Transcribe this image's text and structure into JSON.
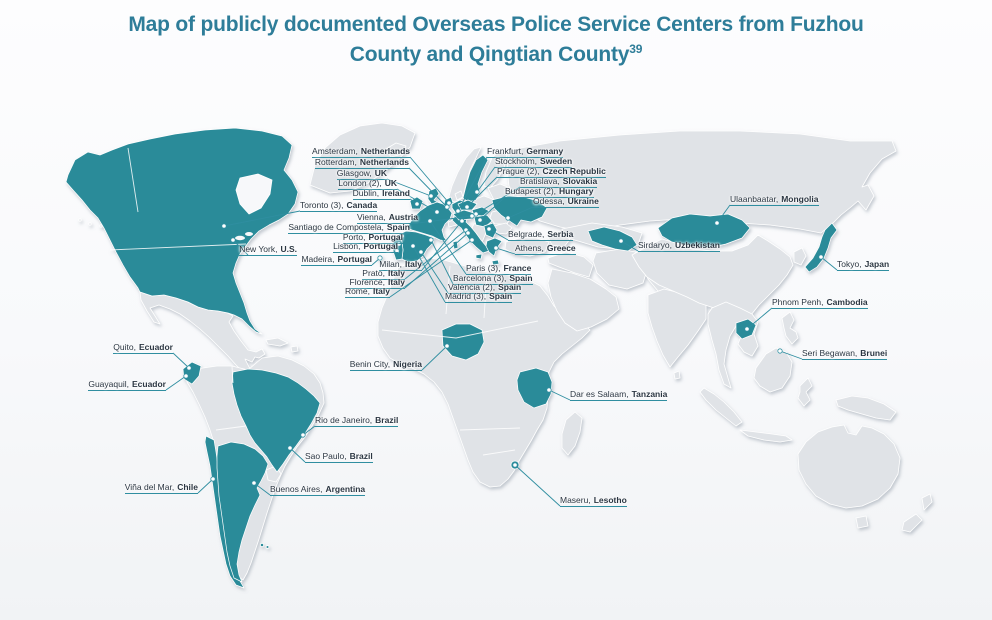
{
  "title": {
    "line1": "Map of publicly documented Overseas Police Service Centers from Fuzhou",
    "line2": "County and Qingtian County",
    "footnote_ref": "39"
  },
  "colors": {
    "highlight_teal": "#2b8b99",
    "land_gray": "#e0e3e7",
    "title_teal": "#2e7d99",
    "label_text": "#2b3642",
    "leader_line": "#2f8ea0"
  },
  "labels": [
    {
      "city": "Amsterdam,",
      "country": "Netherlands"
    },
    {
      "city": "Rotterdam,",
      "country": "Netherlands"
    },
    {
      "city": "Glasgow,",
      "country": "UK"
    },
    {
      "city": "London (2),",
      "country": "UK"
    },
    {
      "city": "Dublin,",
      "country": "Ireland"
    },
    {
      "city": "Frankfurt,",
      "country": "Germany"
    },
    {
      "city": "Stockholm,",
      "country": "Sweden"
    },
    {
      "city": "Prague (2),",
      "country": "Czech Republic"
    },
    {
      "city": "Bratislava,",
      "country": "Slovakia"
    },
    {
      "city": "Budapest (2),",
      "country": "Hungary"
    },
    {
      "city": "Odessa,",
      "country": "Ukraine"
    },
    {
      "city": "Toronto (3),",
      "country": "Canada"
    },
    {
      "city": "Vienna,",
      "country": "Austria"
    },
    {
      "city": "Santiago de Compostela,",
      "country": "Spain"
    },
    {
      "city": "Porto,",
      "country": "Portugal"
    },
    {
      "city": "Lisbon,",
      "country": "Portugal"
    },
    {
      "city": "New York,",
      "country": "U.S."
    },
    {
      "city": "Madeira,",
      "country": "Portugal"
    },
    {
      "city": "Milan,",
      "country": "Italy"
    },
    {
      "city": "Prato,",
      "country": "Italy"
    },
    {
      "city": "Florence,",
      "country": "Italy"
    },
    {
      "city": "Rome,",
      "country": "Italy"
    },
    {
      "city": "Paris (3),",
      "country": "France"
    },
    {
      "city": "Barcelona (3),",
      "country": "Spain"
    },
    {
      "city": "Valencia (2),",
      "country": "Spain"
    },
    {
      "city": "Madrid (3),",
      "country": "Spain"
    },
    {
      "city": "Belgrade,",
      "country": "Serbia"
    },
    {
      "city": "Athens,",
      "country": "Greece"
    },
    {
      "city": "Ulaanbaatar,",
      "country": "Mongolia"
    },
    {
      "city": "Sirdaryo,",
      "country": "Uzbekistan"
    },
    {
      "city": "Tokyo,",
      "country": "Japan"
    },
    {
      "city": "Phnom Penh,",
      "country": "Cambodia"
    },
    {
      "city": "Seri Begawan,",
      "country": "Brunei"
    },
    {
      "city": "Quito,",
      "country": "Ecuador"
    },
    {
      "city": "Guayaquil,",
      "country": "Ecuador"
    },
    {
      "city": "Benin City,",
      "country": "Nigeria"
    },
    {
      "city": "Dar es Salaam,",
      "country": "Tanzania"
    },
    {
      "city": "Rio de Janeiro,",
      "country": "Brazil"
    },
    {
      "city": "Sao Paulo,",
      "country": "Brazil"
    },
    {
      "city": "Viña del Mar,",
      "country": "Chile"
    },
    {
      "city": "Buenos Aires,",
      "country": "Argentina"
    },
    {
      "city": "Maseru,",
      "country": "Lesotho"
    }
  ]
}
